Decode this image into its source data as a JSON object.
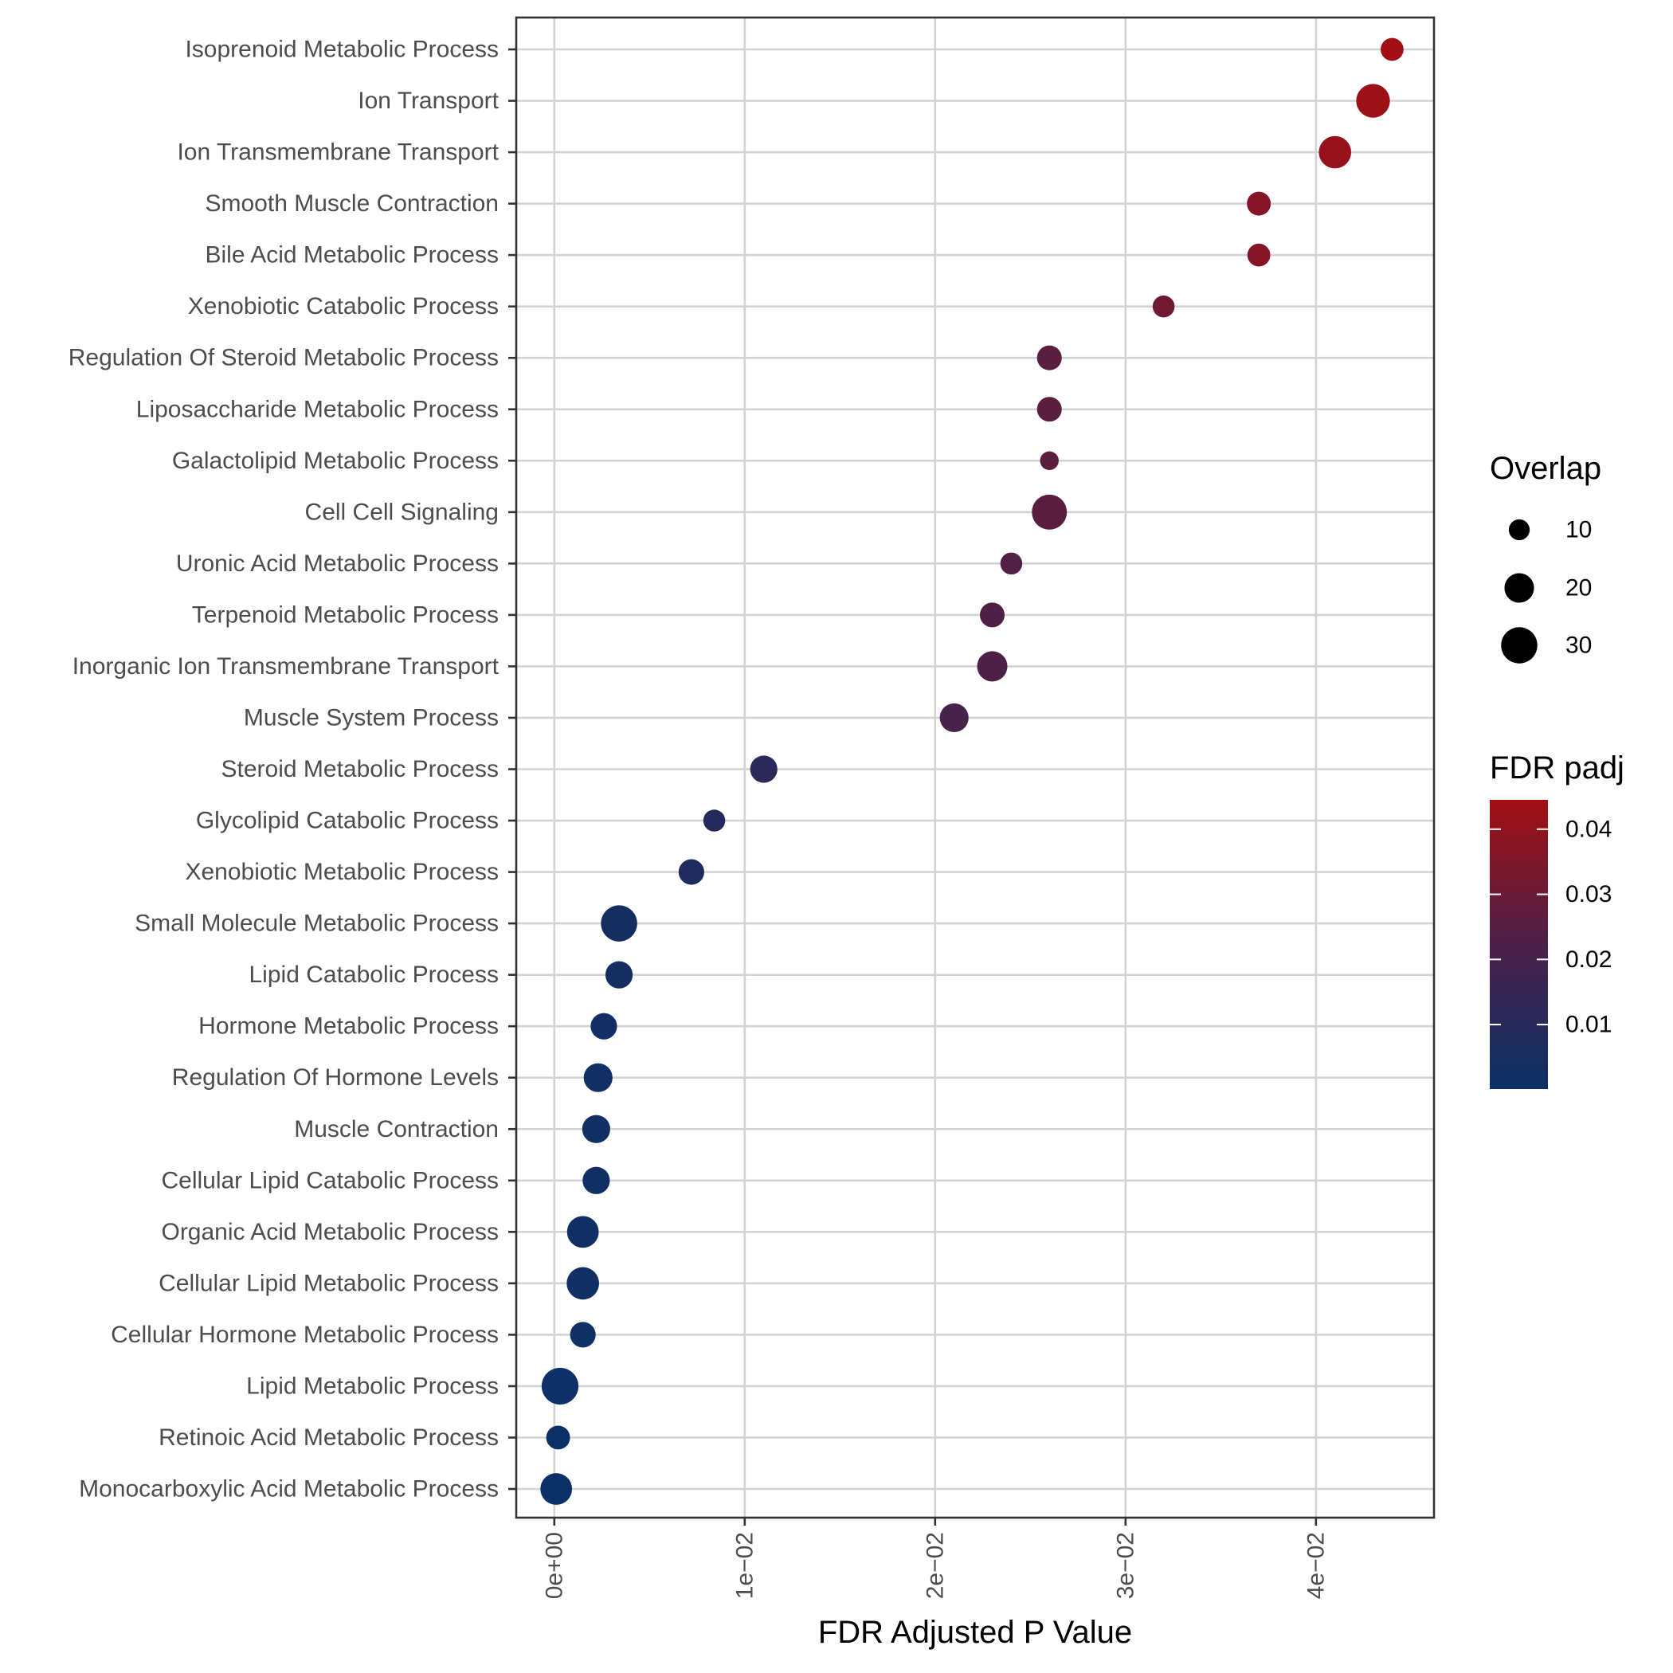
{
  "chart_data": {
    "type": "scatter",
    "xlabel": "FDR Adjusted P Value",
    "ylabel": "",
    "xlim": [
      -0.002,
      0.0462
    ],
    "x_ticks": [
      0,
      0.01,
      0.02,
      0.03,
      0.04
    ],
    "x_tick_labels": [
      "0e+00",
      "1e−02",
      "2e−02",
      "3e−02",
      "4e−02"
    ],
    "grid": true,
    "legend_position": "right",
    "categories": [
      "Isoprenoid Metabolic Process",
      "Ion Transport",
      "Ion Transmembrane Transport",
      "Smooth Muscle Contraction",
      "Bile Acid Metabolic Process",
      "Xenobiotic Catabolic Process",
      "Regulation Of Steroid Metabolic Process",
      "Liposaccharide Metabolic Process",
      "Galactolipid Metabolic Process",
      "Cell Cell Signaling",
      "Uronic Acid Metabolic Process",
      "Terpenoid Metabolic Process",
      "Inorganic Ion Transmembrane Transport",
      "Muscle System Process",
      "Steroid Metabolic Process",
      "Glycolipid Catabolic Process",
      "Xenobiotic Metabolic Process",
      "Small Molecule Metabolic Process",
      "Lipid Catabolic Process",
      "Hormone Metabolic Process",
      "Regulation Of Hormone Levels",
      "Muscle Contraction",
      "Cellular Lipid Catabolic Process",
      "Organic Acid Metabolic Process",
      "Cellular Lipid Metabolic Process",
      "Cellular Hormone Metabolic Process",
      "Lipid Metabolic Process",
      "Retinoic Acid Metabolic Process",
      "Monocarboxylic Acid Metabolic Process"
    ],
    "x": [
      0.044,
      0.043,
      0.041,
      0.037,
      0.037,
      0.032,
      0.026,
      0.026,
      0.026,
      0.026,
      0.024,
      0.023,
      0.023,
      0.021,
      0.011,
      0.0084,
      0.0072,
      0.0034,
      0.0034,
      0.0026,
      0.0023,
      0.0022,
      0.0022,
      0.0015,
      0.0015,
      0.0015,
      0.0003,
      0.0002,
      0.0001
    ],
    "overlap": [
      12,
      26,
      24,
      13,
      12,
      11,
      14,
      14,
      8,
      28,
      11,
      14,
      21,
      19,
      17,
      11,
      15,
      30,
      17,
      16,
      19,
      18,
      17,
      23,
      24,
      15,
      31,
      13,
      23
    ],
    "size_legend": {
      "title": "Overlap",
      "values": [
        10,
        20,
        30
      ],
      "labels": [
        "10",
        "20",
        "30"
      ]
    },
    "color_legend": {
      "title": "FDR padj",
      "low_color": "#0b3067",
      "high_color": "#a30f14",
      "range": [
        0.0001,
        0.0445
      ],
      "ticks": [
        0.01,
        0.02,
        0.03,
        0.04
      ],
      "tick_labels": [
        "0.01",
        "0.02",
        "0.03",
        "0.04"
      ]
    }
  }
}
